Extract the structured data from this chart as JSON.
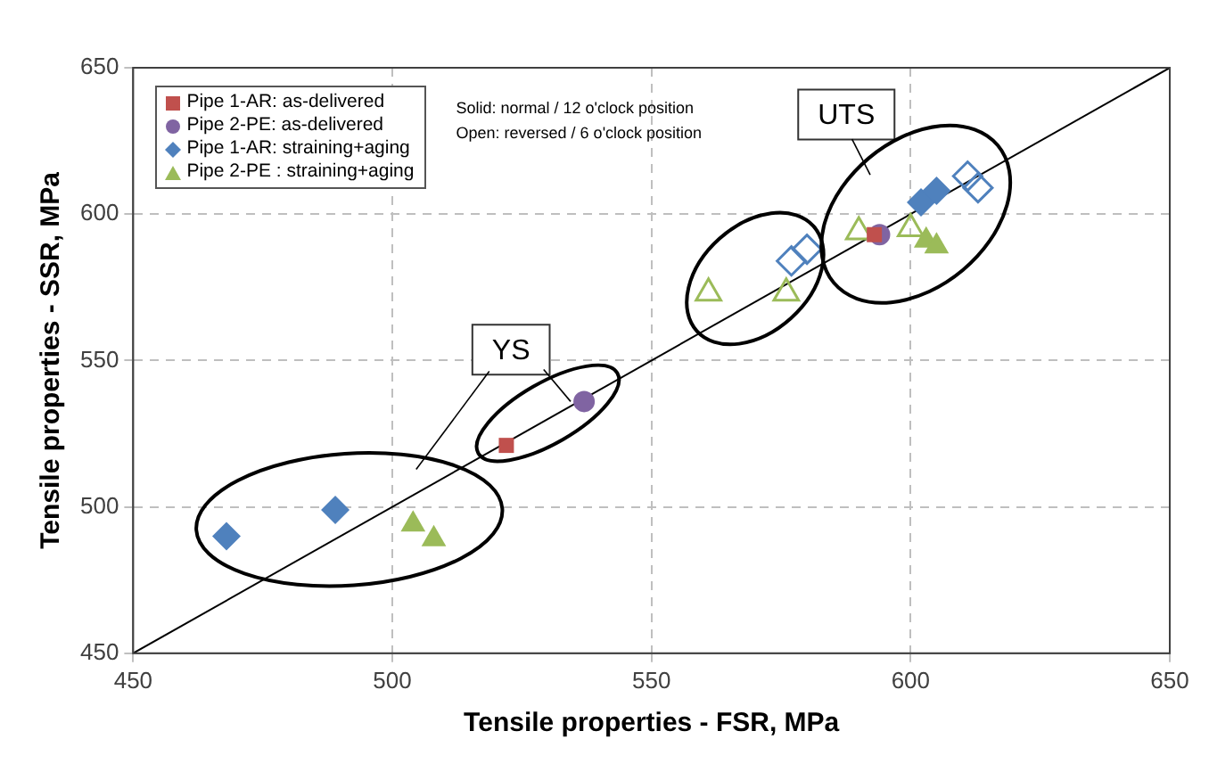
{
  "chart_data": {
    "type": "scatter",
    "xlabel": "Tensile properties - FSR, MPa",
    "ylabel": "Tensile properties - SSR, MPa",
    "xlim": [
      450,
      650
    ],
    "ylim": [
      450,
      650
    ],
    "xticks": [
      450,
      500,
      550,
      600,
      650
    ],
    "yticks": [
      450,
      500,
      550,
      600,
      650
    ],
    "grid": true,
    "legend": "top left",
    "annotations": [
      "YS",
      "UTS",
      "Solid: normal / 12 o'clock position",
      "Open: reversed / 6 o'clock position"
    ],
    "series": [
      {
        "name": "Pipe 1-AR: as-delivered",
        "color": "#c0504d",
        "marker": "square",
        "x": [
          522,
          593
        ],
        "values": [
          521,
          593
        ]
      },
      {
        "name": "Pipe 2-PE: as-delivered",
        "color": "#8064a2",
        "marker": "circle",
        "x": [
          537,
          594
        ],
        "values": [
          536,
          593
        ]
      },
      {
        "name": "Pipe 1-AR: straining+aging",
        "color": "#4f81bd",
        "marker": "diamond",
        "x": [
          468,
          489,
          602,
          605
        ],
        "values": [
          490,
          499,
          604,
          608
        ]
      },
      {
        "name": "Pipe 2-PE : straining+aging",
        "color": "#9bbb59",
        "marker": "triangle",
        "x": [
          504,
          508,
          603,
          605
        ],
        "values": [
          494,
          489,
          591,
          589
        ]
      },
      {
        "color": "#4f81bd",
        "marker": "diamond",
        "x": [
          577,
          580,
          611,
          613
        ],
        "values": [
          584,
          588,
          613,
          609
        ]
      },
      {
        "color": "#9bbb59",
        "marker": "triangle",
        "x": [
          561,
          576,
          590,
          600
        ],
        "values": [
          573,
          573,
          594,
          595
        ]
      },
      {
        "type": "line",
        "color": "#000000",
        "marker": "none",
        "line_style": "solid",
        "x": [
          450,
          650
        ],
        "values": [
          450,
          650
        ]
      }
    ]
  }
}
